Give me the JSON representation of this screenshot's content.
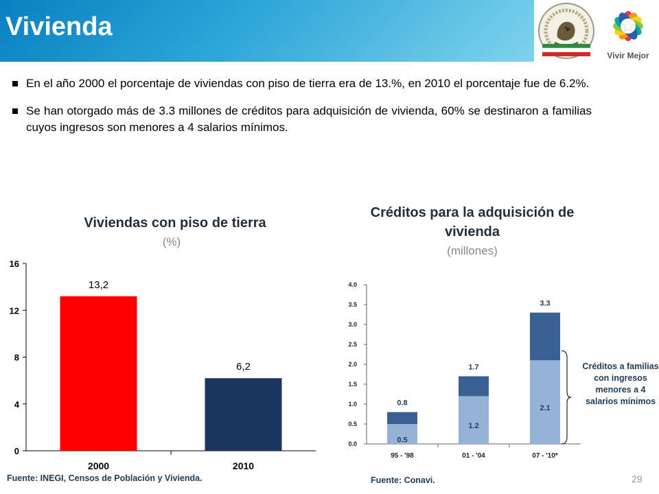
{
  "header": {
    "title": "Vivienda",
    "logo_text": "Vivir Mejor"
  },
  "bullets": [
    "En el año 2000 el porcentaje de viviendas con piso de tierra era de 13.%, en 2010 el porcentaje fue de 6.2%.",
    "Se han otorgado más de 3.3 millones de créditos para adquisición de vivienda, 60% se destinaron a familias cuyos ingresos son menores a 4 salarios mínimos."
  ],
  "colors": {
    "header_blue": "#1a8fcc",
    "bar_red": "#ff0000",
    "bar_navy": "#1b365d",
    "stack_dark": "#3a5f93",
    "stack_light": "#95b3d7"
  },
  "chart_data": [
    {
      "type": "bar",
      "title": "Viviendas con piso de tierra",
      "subtitle": "(%)",
      "categories": [
        "2000",
        "2010"
      ],
      "values": [
        13.2,
        6.2
      ],
      "data_labels": [
        "13,2",
        "6,2"
      ],
      "bar_colors": [
        "#ff0000",
        "#1b365d"
      ],
      "ylim": [
        0,
        16
      ],
      "yticks": [
        "0",
        "4",
        "8",
        "12",
        "16"
      ],
      "grid": false,
      "source": "Fuente: INEGI, Censos de Población y Vivienda."
    },
    {
      "type": "bar",
      "stacked": true,
      "title": "Créditos para la adquisición de vivienda",
      "subtitle": "(millones)",
      "categories": [
        "95 - '98",
        "01 - '04",
        "07 - '10*"
      ],
      "totals": [
        0.8,
        1.7,
        3.3
      ],
      "total_labels": [
        "0.8",
        "1.7",
        "3.3"
      ],
      "series": [
        {
          "values": [
            0.5,
            1.2,
            2.1
          ],
          "labels": [
            "0.5",
            "1.2",
            "2.1"
          ],
          "color": "#95b3d7"
        },
        {
          "values": [
            0.3,
            0.5,
            1.2
          ],
          "color": "#3a5f93"
        }
      ],
      "ylim": [
        0,
        4.0
      ],
      "yticks": [
        "0.0",
        "0.5",
        "1.0",
        "1.5",
        "2.0",
        "2.5",
        "3.0",
        "3.5",
        "4.0"
      ],
      "grid": false,
      "annotation": "Créditos a familias con ingresos menores a 4 salarios mínimos",
      "source": "Fuente: Conavi."
    }
  ],
  "page_number": "29"
}
